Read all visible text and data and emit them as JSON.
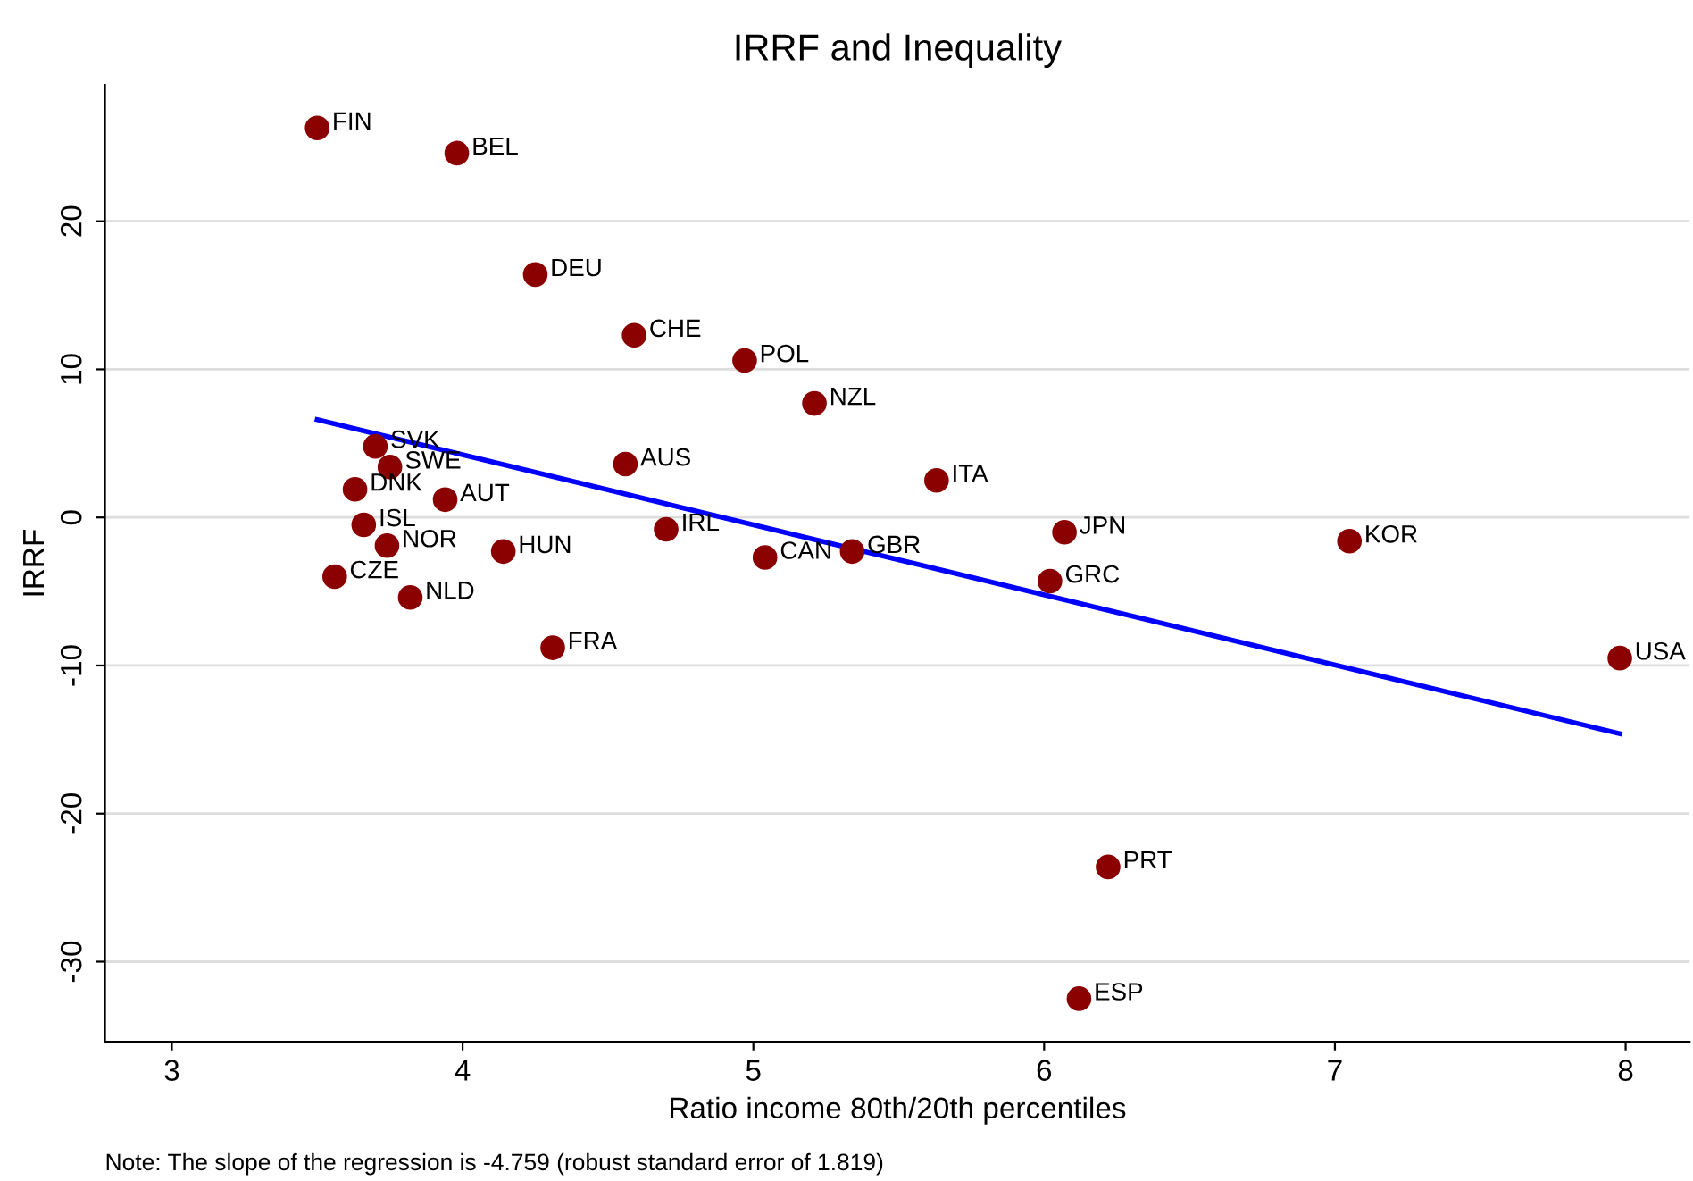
{
  "chart_data": {
    "type": "scatter",
    "title": "IRRF and Inequality",
    "xlabel": "Ratio income 80th/20th percentiles",
    "ylabel": "IRRF",
    "xlim": [
      2.77,
      8.22
    ],
    "xticks": [
      3,
      4,
      5,
      6,
      7,
      8
    ],
    "ylim": [
      -35.4,
      29.2
    ],
    "yticks": [
      -30,
      -20,
      -10,
      0,
      10,
      20
    ],
    "grid": "y",
    "marker": "circle",
    "series": [
      {
        "color": "#8b0000",
        "x": [
          3.5,
          3.98,
          4.25,
          4.59,
          4.97,
          5.21,
          4.56,
          3.7,
          3.75,
          3.63,
          3.94,
          3.66,
          3.74,
          3.56,
          3.82,
          4.14,
          4.7,
          5.04,
          5.34,
          4.31,
          5.63,
          6.07,
          6.02,
          7.05,
          7.98,
          6.22,
          6.12
        ],
        "values": [
          26.3,
          24.6,
          16.4,
          12.3,
          10.6,
          7.7,
          3.6,
          4.8,
          3.4,
          1.9,
          1.2,
          -0.5,
          -1.9,
          -4.0,
          -5.4,
          -2.3,
          -0.8,
          -2.7,
          -2.3,
          -8.8,
          2.5,
          -1.0,
          -4.3,
          -1.6,
          -9.5,
          -23.6,
          -32.5
        ]
      },
      {
        "type": "line",
        "color": "#0000ff",
        "marker": "none",
        "x": [
          3.5,
          7.98
        ],
        "values": [
          6.6,
          -14.6
        ]
      }
    ],
    "annotations": [
      {
        "text": "FIN",
        "x": 3.5,
        "y": 26.3
      },
      {
        "text": "BEL",
        "x": 3.98,
        "y": 24.6
      },
      {
        "text": "DEU",
        "x": 4.25,
        "y": 16.4
      },
      {
        "text": "CHE",
        "x": 4.59,
        "y": 12.3
      },
      {
        "text": "POL",
        "x": 4.97,
        "y": 10.6
      },
      {
        "text": "NZL",
        "x": 5.21,
        "y": 7.7
      },
      {
        "text": "AUS",
        "x": 4.56,
        "y": 3.6
      },
      {
        "text": "SVK",
        "x": 3.7,
        "y": 4.8
      },
      {
        "text": "SWE",
        "x": 3.75,
        "y": 3.4
      },
      {
        "text": "DNK",
        "x": 3.63,
        "y": 1.9
      },
      {
        "text": "AUT",
        "x": 3.94,
        "y": 1.2
      },
      {
        "text": "ISL",
        "x": 3.66,
        "y": -0.5
      },
      {
        "text": "NOR",
        "x": 3.74,
        "y": -1.9
      },
      {
        "text": "CZE",
        "x": 3.56,
        "y": -4.0
      },
      {
        "text": "NLD",
        "x": 3.82,
        "y": -5.4
      },
      {
        "text": "HUN",
        "x": 4.14,
        "y": -2.3
      },
      {
        "text": "IRL",
        "x": 4.7,
        "y": -0.8
      },
      {
        "text": "CAN",
        "x": 5.04,
        "y": -2.7
      },
      {
        "text": "GBR",
        "x": 5.34,
        "y": -2.3
      },
      {
        "text": "FRA",
        "x": 4.31,
        "y": -8.8
      },
      {
        "text": "ITA",
        "x": 5.63,
        "y": 2.5
      },
      {
        "text": "JPN",
        "x": 6.07,
        "y": -1.0
      },
      {
        "text": "GRC",
        "x": 6.02,
        "y": -4.3
      },
      {
        "text": "KOR",
        "x": 7.05,
        "y": -1.6
      },
      {
        "text": "USA",
        "x": 7.98,
        "y": -9.5
      },
      {
        "text": "PRT",
        "x": 6.22,
        "y": -23.6
      },
      {
        "text": "ESP",
        "x": 6.12,
        "y": -32.5
      },
      "Note: The slope of the regression is -4.759 (robust standard error of 1.819)"
    ]
  }
}
